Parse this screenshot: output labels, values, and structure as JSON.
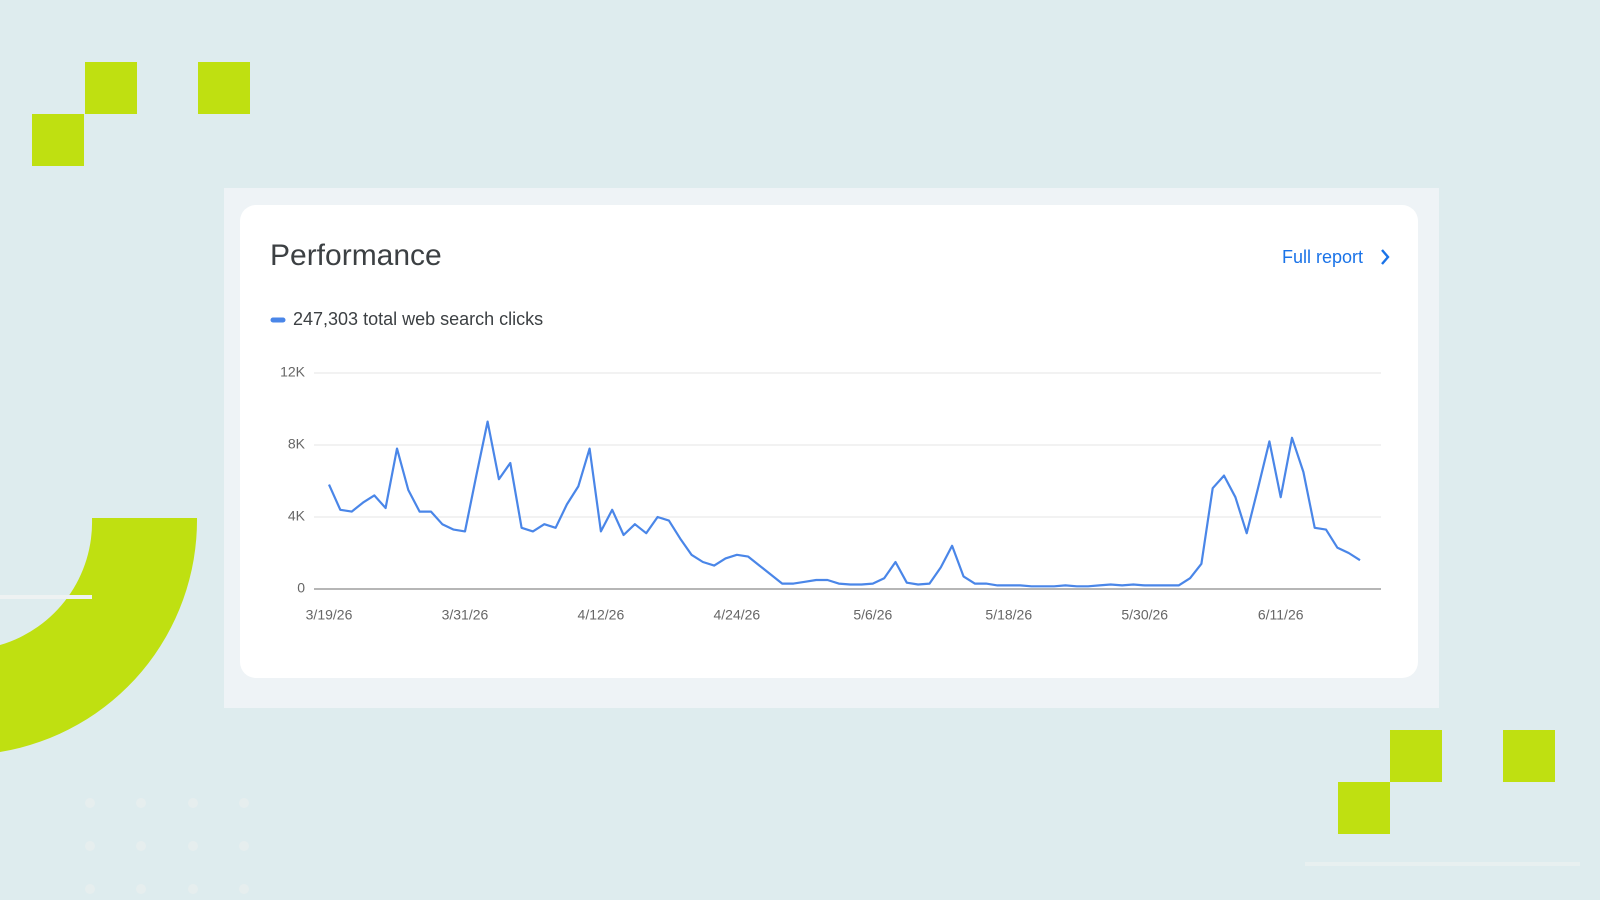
{
  "title": "Performance",
  "link": "Full report",
  "chart_data": {
    "type": "line",
    "categories": [
      "3/19/26",
      null,
      null,
      null,
      null,
      null,
      null,
      null,
      null,
      null,
      null,
      null,
      "3/31/26",
      null,
      null,
      null,
      null,
      null,
      null,
      null,
      null,
      null,
      null,
      null,
      "4/12/26",
      null,
      null,
      null,
      null,
      null,
      null,
      null,
      null,
      null,
      null,
      null,
      "4/24/26",
      null,
      null,
      null,
      null,
      null,
      null,
      null,
      null,
      null,
      null,
      null,
      "5/6/26",
      null,
      null,
      null,
      null,
      null,
      null,
      null,
      null,
      null,
      null,
      null,
      "5/18/26",
      null,
      null,
      null,
      null,
      null,
      null,
      null,
      null,
      null,
      null,
      null,
      "5/30/26",
      null,
      null,
      null,
      null,
      null,
      null,
      null,
      null,
      null,
      null,
      null,
      "6/11/26",
      null,
      null,
      null,
      null,
      null,
      null,
      null
    ],
    "series": [
      {
        "name": "247,303 total web search clicks",
        "color": "#4a86e8",
        "values": [
          5800,
          4400,
          4300,
          4800,
          5200,
          4500,
          7800,
          5500,
          4300,
          4300,
          3600,
          3300,
          3200,
          6300,
          9300,
          6100,
          7000,
          3400,
          3200,
          3600,
          3400,
          4700,
          5700,
          7800,
          3200,
          4400,
          3000,
          3600,
          3100,
          4000,
          3800,
          2800,
          1900,
          1500,
          1300,
          1700,
          1900,
          1800,
          1300,
          800,
          300,
          300,
          400,
          500,
          500,
          300,
          250,
          250,
          300,
          600,
          1500,
          350,
          250,
          300,
          1200,
          2400,
          700,
          300,
          300,
          200,
          200,
          200,
          150,
          150,
          150,
          200,
          150,
          150,
          200,
          250,
          200,
          250,
          200,
          200,
          200,
          200,
          600,
          1400,
          5600,
          6300,
          5100,
          3100,
          5600,
          8200,
          5100,
          8400,
          6500,
          3400,
          3300,
          2300,
          2000,
          1600
        ]
      }
    ],
    "ylim": [
      0,
      12000
    ],
    "yticks": [
      0,
      {
        "value": 4000,
        "label": "4K"
      },
      {
        "value": 8000,
        "label": "8K"
      },
      {
        "value": 12000,
        "label": "12K"
      }
    ],
    "grid": true
  }
}
